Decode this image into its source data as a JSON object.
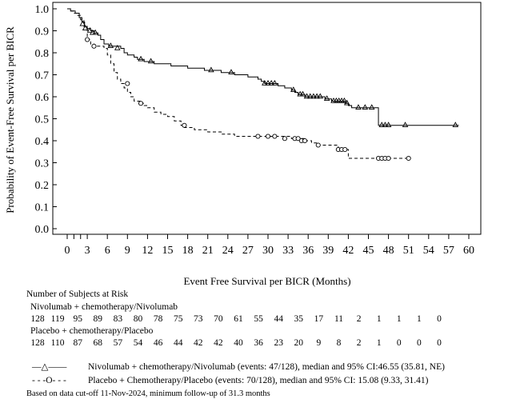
{
  "chart_data": {
    "type": "line",
    "subtype": "kaplan-meier",
    "xlabel": "Event Free Survival per BICR (Months)",
    "ylabel": "Probability of Event-Free Survival per BICR",
    "xlim": [
      0,
      60
    ],
    "ylim": [
      0,
      1.0
    ],
    "xticks": [
      "0",
      "3",
      "6",
      "9",
      "12",
      "15",
      "18",
      "21",
      "24",
      "27",
      "30",
      "33",
      "36",
      "39",
      "42",
      "45",
      "48",
      "51",
      "54",
      "57",
      "60"
    ],
    "yticks": [
      "0.0",
      "0.1",
      "0.2",
      "0.3",
      "0.4",
      "0.5",
      "0.6",
      "0.7",
      "0.8",
      "0.9",
      "1.0"
    ],
    "minor_x_ticks": [
      1,
      2
    ],
    "grid": false,
    "series": [
      {
        "name": "Nivolumab + chemotherapy/Nivolumab",
        "line_style": "solid",
        "censor_marker": "triangle",
        "color": "#000000",
        "steps": [
          [
            0,
            1.0
          ],
          [
            0.5,
            0.99
          ],
          [
            1.2,
            0.98
          ],
          [
            1.8,
            0.96
          ],
          [
            2.2,
            0.94
          ],
          [
            2.6,
            0.92
          ],
          [
            3.0,
            0.91
          ],
          [
            3.5,
            0.9
          ],
          [
            4.0,
            0.89
          ],
          [
            4.6,
            0.88
          ],
          [
            5.0,
            0.86
          ],
          [
            5.5,
            0.84
          ],
          [
            6.2,
            0.83
          ],
          [
            8.0,
            0.82
          ],
          [
            8.5,
            0.8
          ],
          [
            9.0,
            0.79
          ],
          [
            10.0,
            0.78
          ],
          [
            10.5,
            0.77
          ],
          [
            11.5,
            0.76
          ],
          [
            13.0,
            0.75
          ],
          [
            15.5,
            0.74
          ],
          [
            18.0,
            0.73
          ],
          [
            20.5,
            0.72
          ],
          [
            23.0,
            0.71
          ],
          [
            25.0,
            0.7
          ],
          [
            27.0,
            0.69
          ],
          [
            28.5,
            0.68
          ],
          [
            29.0,
            0.67
          ],
          [
            29.5,
            0.66
          ],
          [
            31.5,
            0.65
          ],
          [
            32.5,
            0.64
          ],
          [
            33.5,
            0.63
          ],
          [
            34.0,
            0.62
          ],
          [
            34.5,
            0.61
          ],
          [
            35.5,
            0.6
          ],
          [
            38.5,
            0.59
          ],
          [
            39.5,
            0.58
          ],
          [
            41.5,
            0.57
          ],
          [
            42.0,
            0.56
          ],
          [
            42.5,
            0.55
          ],
          [
            46.5,
            0.47
          ],
          [
            58.5,
            0.47
          ]
        ],
        "censors": [
          [
            2.3,
            0.93
          ],
          [
            2.7,
            0.91
          ],
          [
            3.4,
            0.9
          ],
          [
            3.8,
            0.89
          ],
          [
            4.2,
            0.89
          ],
          [
            6.5,
            0.83
          ],
          [
            7.5,
            0.82
          ],
          [
            11.0,
            0.77
          ],
          [
            12.5,
            0.76
          ],
          [
            21.5,
            0.72
          ],
          [
            24.5,
            0.71
          ],
          [
            29.5,
            0.66
          ],
          [
            30.0,
            0.66
          ],
          [
            30.5,
            0.66
          ],
          [
            31.0,
            0.66
          ],
          [
            33.8,
            0.63
          ],
          [
            34.8,
            0.61
          ],
          [
            35.2,
            0.61
          ],
          [
            35.8,
            0.6
          ],
          [
            36.3,
            0.6
          ],
          [
            36.8,
            0.6
          ],
          [
            37.3,
            0.6
          ],
          [
            37.8,
            0.6
          ],
          [
            38.8,
            0.59
          ],
          [
            39.8,
            0.58
          ],
          [
            40.2,
            0.58
          ],
          [
            40.6,
            0.58
          ],
          [
            41.0,
            0.58
          ],
          [
            41.4,
            0.58
          ],
          [
            41.8,
            0.57
          ],
          [
            43.5,
            0.55
          ],
          [
            44.5,
            0.55
          ],
          [
            45.5,
            0.55
          ],
          [
            47.0,
            0.47
          ],
          [
            47.5,
            0.47
          ],
          [
            48.0,
            0.47
          ],
          [
            50.5,
            0.47
          ],
          [
            58.0,
            0.47
          ]
        ]
      },
      {
        "name": "Placebo + Chemotherapy/Placebo",
        "line_style": "dashed",
        "censor_marker": "circle",
        "color": "#000000",
        "steps": [
          [
            0,
            1.0
          ],
          [
            0.5,
            0.99
          ],
          [
            1.0,
            0.98
          ],
          [
            1.5,
            0.97
          ],
          [
            2.0,
            0.95
          ],
          [
            2.5,
            0.92
          ],
          [
            3.0,
            0.86
          ],
          [
            3.5,
            0.84
          ],
          [
            4.0,
            0.83
          ],
          [
            5.5,
            0.82
          ],
          [
            6.0,
            0.79
          ],
          [
            6.5,
            0.75
          ],
          [
            7.0,
            0.71
          ],
          [
            7.5,
            0.68
          ],
          [
            8.0,
            0.66
          ],
          [
            8.5,
            0.64
          ],
          [
            9.0,
            0.62
          ],
          [
            9.5,
            0.6
          ],
          [
            10.0,
            0.58
          ],
          [
            11.0,
            0.57
          ],
          [
            11.5,
            0.56
          ],
          [
            12.0,
            0.55
          ],
          [
            13.0,
            0.53
          ],
          [
            14.0,
            0.52
          ],
          [
            15.0,
            0.51
          ],
          [
            16.0,
            0.49
          ],
          [
            17.0,
            0.47
          ],
          [
            17.5,
            0.46
          ],
          [
            19.0,
            0.45
          ],
          [
            21.0,
            0.44
          ],
          [
            23.0,
            0.43
          ],
          [
            25.0,
            0.42
          ],
          [
            33.5,
            0.41
          ],
          [
            35.5,
            0.4
          ],
          [
            36.5,
            0.39
          ],
          [
            37.5,
            0.38
          ],
          [
            40.5,
            0.36
          ],
          [
            42.0,
            0.32
          ],
          [
            51.0,
            0.32
          ]
        ],
        "censors": [
          [
            3.0,
            0.86
          ],
          [
            4.0,
            0.83
          ],
          [
            9.0,
            0.66
          ],
          [
            11.0,
            0.57
          ],
          [
            17.5,
            0.47
          ],
          [
            28.5,
            0.42
          ],
          [
            30.0,
            0.42
          ],
          [
            31.0,
            0.42
          ],
          [
            32.5,
            0.41
          ],
          [
            34.0,
            0.41
          ],
          [
            34.5,
            0.41
          ],
          [
            35.0,
            0.4
          ],
          [
            35.5,
            0.4
          ],
          [
            37.5,
            0.38
          ],
          [
            40.5,
            0.36
          ],
          [
            41.0,
            0.36
          ],
          [
            41.5,
            0.36
          ],
          [
            46.5,
            0.32
          ],
          [
            47.0,
            0.32
          ],
          [
            47.5,
            0.32
          ],
          [
            48.0,
            0.32
          ],
          [
            51.0,
            0.32
          ]
        ]
      }
    ],
    "risk_table": {
      "title": "Number of Subjects at Risk",
      "rows": [
        {
          "label": "Nivolumab + chemotherapy/Nivolumab",
          "values": [
            "128",
            "119",
            "95",
            "89",
            "83",
            "80",
            "78",
            "75",
            "73",
            "70",
            "61",
            "55",
            "44",
            "35",
            "17",
            "11",
            "2",
            "1",
            "1",
            "1",
            "0"
          ]
        },
        {
          "label": "Placebo + chemotherapy/Placebo",
          "values": [
            "128",
            "110",
            "87",
            "68",
            "57",
            "54",
            "46",
            "44",
            "42",
            "42",
            "40",
            "36",
            "23",
            "20",
            "9",
            "8",
            "2",
            "1",
            "0",
            "0",
            "0"
          ]
        }
      ]
    },
    "legend": [
      {
        "symbol": "—△——",
        "text": "Nivolumab + chemotherapy/Nivolumab (events: 47/128), median and 95% CI:46.55 (35.81, NE)"
      },
      {
        "symbol": "- - -O- - -",
        "text": "Placebo + Chemotherapy/Placebo (events: 70/128), median and 95% CI: 15.08 (9.33, 31.41)"
      }
    ],
    "footnote": "Based on data cut-off 11-Nov-2024, minimum follow-up of 31.3 months"
  }
}
